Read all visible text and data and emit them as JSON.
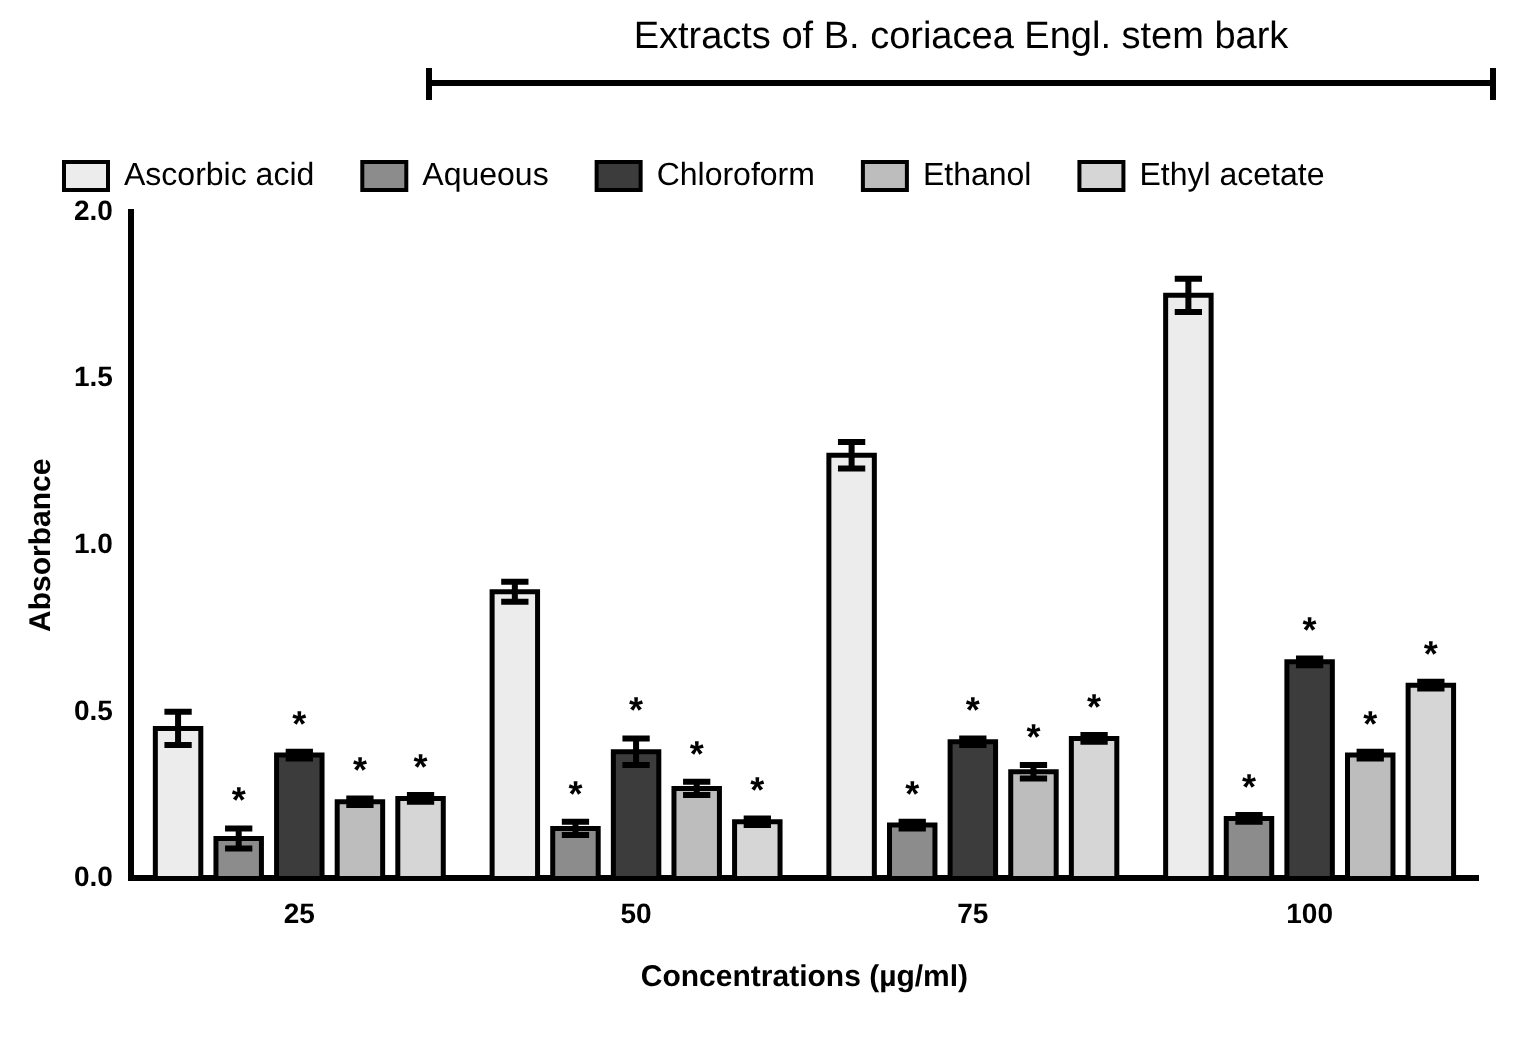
{
  "chart_data": {
    "type": "bar",
    "categories": [
      "25",
      "50",
      "75",
      "100"
    ],
    "xlabel": "Concentrations (µg/ml)",
    "ylabel": "Absorbance",
    "ylim": [
      0,
      2.0
    ],
    "yticks": [
      {
        "value": 0,
        "label": "0.0"
      },
      {
        "value": 0.5,
        "label": "0.5"
      },
      {
        "value": 1.0,
        "label": "1.0"
      },
      {
        "value": 1.5,
        "label": "1.5"
      },
      {
        "value": 2.0,
        "label": "2.0"
      }
    ],
    "grid": false,
    "legend": "top",
    "legend_title": "Extracts of B. coriacea Engl. stem bark",
    "series": [
      {
        "name": "Ascorbic acid",
        "color": "#ececec",
        "values": [
          0.45,
          0.86,
          1.27,
          1.75
        ],
        "errors": [
          0.05,
          0.03,
          0.04,
          0.05
        ]
      },
      {
        "name": "Aqueous",
        "color": "#8c8c8c",
        "values": [
          0.12,
          0.15,
          0.16,
          0.18
        ],
        "errors": [
          0.03,
          0.02,
          0.01,
          0.01
        ],
        "value_labels": [
          "*",
          "*",
          "*",
          "*"
        ]
      },
      {
        "name": "Chloroform",
        "color": "#3c3c3c",
        "values": [
          0.37,
          0.38,
          0.41,
          0.65
        ],
        "errors": [
          0.01,
          0.04,
          0.01,
          0.01
        ],
        "value_labels": [
          "*",
          "*",
          "*",
          "*"
        ]
      },
      {
        "name": "Ethanol",
        "color": "#bdbdbd",
        "values": [
          0.23,
          0.27,
          0.32,
          0.37
        ],
        "errors": [
          0.01,
          0.02,
          0.02,
          0.01
        ],
        "value_labels": [
          "*",
          "*",
          "*",
          "*"
        ]
      },
      {
        "name": "Ethyl acetate",
        "color": "#d6d6d6",
        "values": [
          0.24,
          0.17,
          0.42,
          0.58
        ],
        "errors": [
          0.01,
          0.01,
          0.01,
          0.01
        ],
        "value_labels": [
          "*",
          "*",
          "*",
          "*"
        ]
      }
    ]
  }
}
